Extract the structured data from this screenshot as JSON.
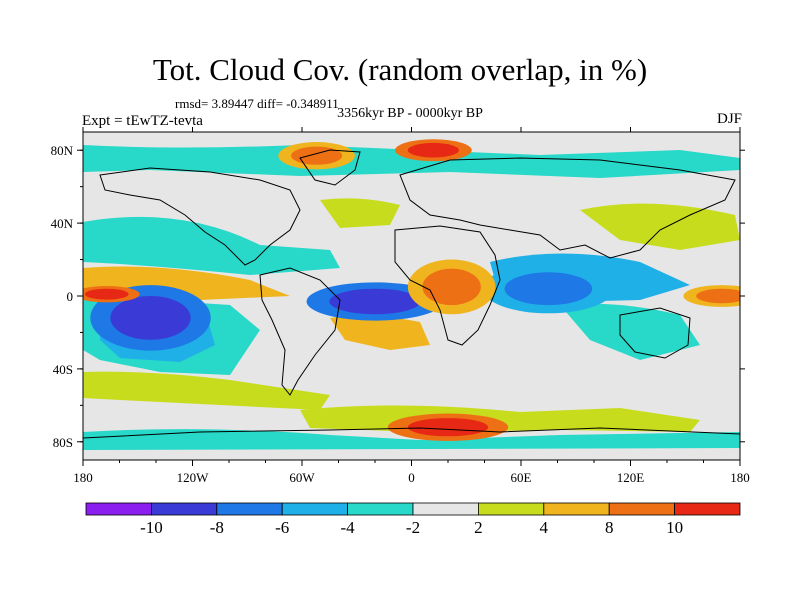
{
  "header": {
    "title": "Tot. Cloud Cov. (random overlap, in %)",
    "stats": "rmsd= 3.89447 diff= -0.348911",
    "period": "3356kyr BP - 0000kyr BP",
    "experiment": "Expt = tEwTZ-tevta",
    "season": "DJF"
  },
  "chart_data": {
    "type": "heatmap",
    "title": "Tot. Cloud Cov. (random overlap, in %)",
    "projection": "cylindrical equidistant",
    "xlim": [
      -180,
      180
    ],
    "ylim": [
      -90,
      90
    ],
    "x_ticks": [
      {
        "value": -180,
        "label": "180"
      },
      {
        "value": -120,
        "label": "120W"
      },
      {
        "value": -60,
        "label": "60W"
      },
      {
        "value": 0,
        "label": "0"
      },
      {
        "value": 60,
        "label": "60E"
      },
      {
        "value": 120,
        "label": "120E"
      },
      {
        "value": 180,
        "label": "180"
      }
    ],
    "y_ticks": [
      {
        "value": 80,
        "label": "80N"
      },
      {
        "value": 40,
        "label": "40N"
      },
      {
        "value": 0,
        "label": "0"
      },
      {
        "value": -40,
        "label": "40S"
      },
      {
        "value": -80,
        "label": "80S"
      }
    ],
    "colorbar": {
      "levels": [
        -12,
        -10,
        -8,
        -6,
        -4,
        -2,
        2,
        4,
        8,
        10,
        12
      ],
      "labels": [
        "-10",
        "-8",
        "-6",
        "-4",
        "-2",
        "2",
        "4",
        "8",
        "10"
      ],
      "colors": [
        "#8a1fef",
        "#3a3ad6",
        "#1e78e6",
        "#1eb0e6",
        "#28d8c8",
        "#e6e6e6",
        "#c8dc1e",
        "#f0b41e",
        "#ee7014",
        "#e62814"
      ]
    },
    "anomalies": [
      {
        "lon": -143,
        "lat": -12,
        "rx": 22,
        "ry": 12,
        "value": -10
      },
      {
        "lon": -20,
        "lat": -3,
        "rx": 25,
        "ry": 7,
        "value": -9
      },
      {
        "lon": 75,
        "lat": 4,
        "rx": 24,
        "ry": 9,
        "value": -8
      },
      {
        "lon": 22,
        "lat": 5,
        "rx": 16,
        "ry": 10,
        "value": 9
      },
      {
        "lon": 20,
        "lat": -72,
        "rx": 22,
        "ry": 5,
        "value": 10
      },
      {
        "lon": 170,
        "lat": 0,
        "rx": 14,
        "ry": 4,
        "value": 9
      },
      {
        "lon": -167,
        "lat": 1,
        "rx": 12,
        "ry": 3,
        "value": 10
      },
      {
        "lon": -52,
        "lat": 77,
        "rx": 14,
        "ry": 5,
        "value": 9
      },
      {
        "lon": 12,
        "lat": 80,
        "rx": 14,
        "ry": 4,
        "value": 10
      }
    ]
  }
}
